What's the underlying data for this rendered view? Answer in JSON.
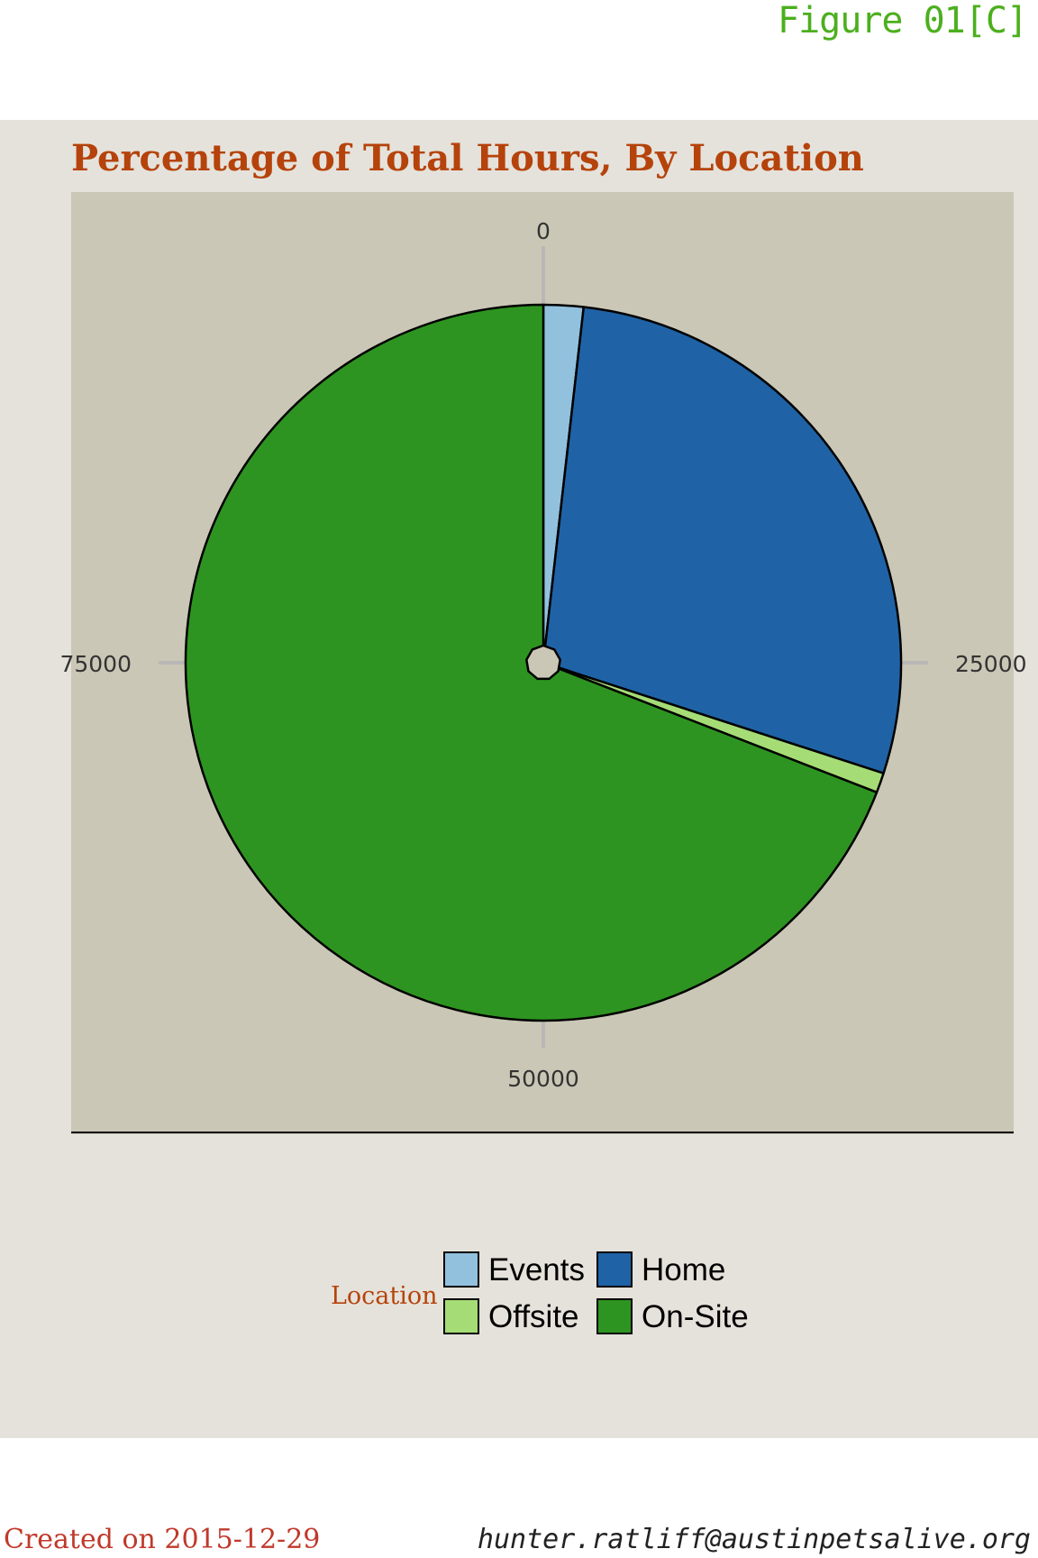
{
  "figure_label": "Figure 01[C]",
  "footer": {
    "created": "Created on 2015-12-29",
    "email": "hunter.ratliff@austinpetsalive.org"
  },
  "chart_data": {
    "type": "pie",
    "title": "Percentage of Total Hours, By Location",
    "axis_ticks": [
      "0",
      "25000",
      "50000",
      "75000"
    ],
    "axis_tick_values": [
      0,
      25000,
      50000,
      75000
    ],
    "axis_max": 100000,
    "legend_title": "Location",
    "legend_placement": "bottom",
    "categories": [
      "Events",
      "Home",
      "Offsite",
      "On-Site"
    ],
    "values": [
      1800,
      28200,
      900,
      69100
    ],
    "colors": {
      "Events": "#92c1de",
      "Home": "#1f63a6",
      "Offsite": "#a6dc76",
      "On-Site": "#2e9421",
      "panel": "#cbc7b6",
      "background": "#e5e2db",
      "title": "#b5430b"
    }
  }
}
